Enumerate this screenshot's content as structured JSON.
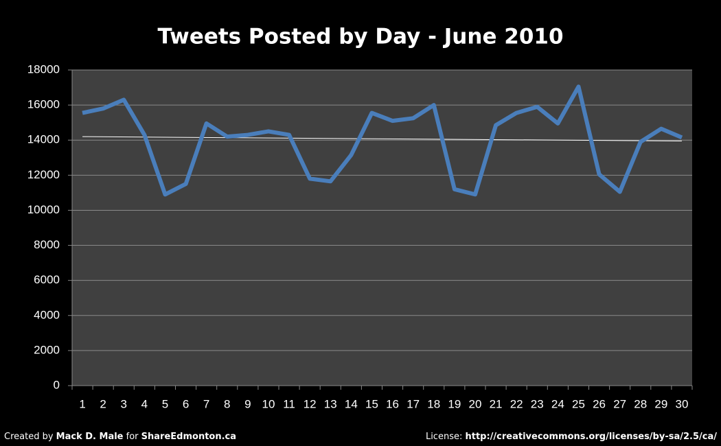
{
  "chart_data": {
    "type": "line",
    "title": "Tweets Posted by Day - June 2010",
    "categories": [
      1,
      2,
      3,
      4,
      5,
      6,
      7,
      8,
      9,
      10,
      11,
      12,
      13,
      14,
      15,
      16,
      17,
      18,
      19,
      20,
      21,
      22,
      23,
      24,
      25,
      26,
      27,
      28,
      29,
      30
    ],
    "series": [
      {
        "name": "Tweets",
        "color": "#4a7ebb",
        "values": [
          15550,
          15800,
          16300,
          14300,
          10900,
          11500,
          14950,
          14200,
          14300,
          14500,
          14300,
          11800,
          11650,
          13150,
          15550,
          15100,
          15250,
          16000,
          11200,
          10900,
          14850,
          15550,
          15900,
          14950,
          17050,
          12050,
          11050,
          13900,
          14650,
          14150
        ]
      }
    ],
    "trendline": {
      "x": [
        1,
        30
      ],
      "values": [
        14200,
        13950
      ],
      "color": "#ffffff"
    },
    "ylim": [
      0,
      18000
    ],
    "yticks": [
      0,
      2000,
      4000,
      6000,
      8000,
      10000,
      12000,
      14000,
      16000,
      18000
    ],
    "grid": true
  },
  "footer": {
    "credit": {
      "prefix": "Created by",
      "author": "Mack D. Male",
      "middle": "for",
      "site": "ShareEdmonton.ca"
    },
    "license": {
      "label": "License:",
      "url": "http://creativecommons.org/licenses/by-sa/2.5/ca/"
    }
  }
}
